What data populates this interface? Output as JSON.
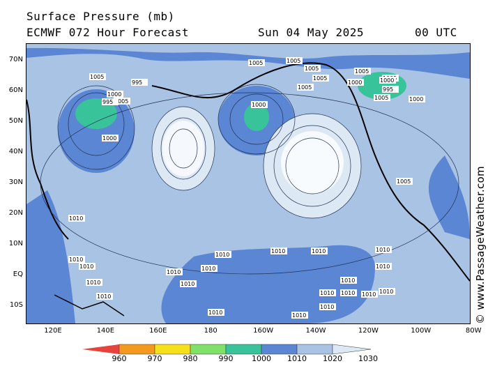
{
  "header": {
    "title": "Surface Pressure (mb)",
    "model": "ECMWF 072 Hour Forecast",
    "date": "Sun 04 May 2025",
    "time": "00 UTC"
  },
  "credit": "© www.PassageWeather.com",
  "lat_labels": [
    "70N",
    "60N",
    "50N",
    "40N",
    "30N",
    "20N",
    "10N",
    "EQ",
    "10S"
  ],
  "lon_labels": [
    "120E",
    "140E",
    "160E",
    "180",
    "160W",
    "140W",
    "120W",
    "100W",
    "80W"
  ],
  "colorbar": {
    "labels": [
      "960",
      "970",
      "980",
      "990",
      "1000",
      "1010",
      "1020",
      "1030"
    ],
    "colors": [
      "#e8423c",
      "#f39a1e",
      "#f6e01c",
      "#7fe06a",
      "#39c39a",
      "#5b86d4",
      "#a9c3e5",
      "#dde8f5"
    ]
  },
  "pressure_labels": [
    "1005",
    "1005",
    "1005",
    "1005",
    "1005",
    "1005",
    "1005",
    "1005",
    "1005",
    "1005",
    "1005",
    "1000",
    "1000",
    "1000",
    "1000",
    "1000",
    "1000",
    "995",
    "995",
    "995",
    "1010",
    "1010",
    "1010",
    "1010",
    "1010",
    "1010",
    "1010",
    "1010",
    "1010",
    "1010",
    "1010",
    "1010",
    "1010",
    "1010",
    "1010",
    "1010",
    "1010",
    "1010",
    "1010",
    "1010",
    "1010"
  ],
  "colors": {
    "ocean_high": "#dde8f5",
    "ocean_mid": "#a9c3e5",
    "ocean_low": "#5b86d4",
    "low_core": "#39c39a"
  }
}
